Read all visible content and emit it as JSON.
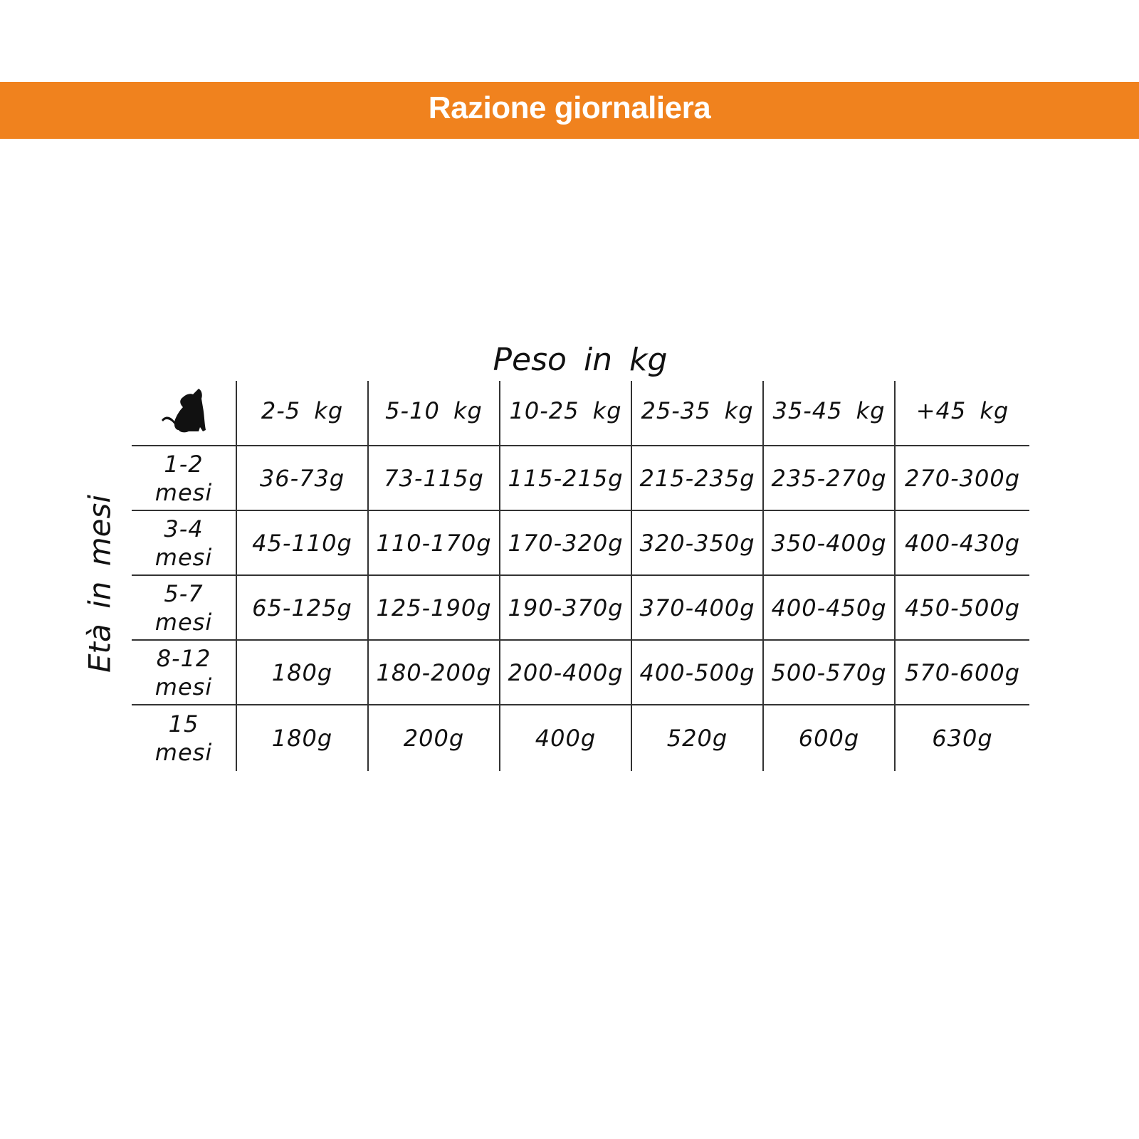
{
  "banner": {
    "title": "Razione giornaliera",
    "color": "#F0821E"
  },
  "table": {
    "column_axis_label": "Peso in kg",
    "row_axis_label": "Età in mesi",
    "corner_icon": "dog-silhouette-icon",
    "columns": [
      "2-5 kg",
      "5-10 kg",
      "10-25 kg",
      "25-35 kg",
      "35-45 kg",
      "+45 kg"
    ],
    "rows": [
      {
        "age": "1-2",
        "unit": "mesi",
        "values": [
          "36-73g",
          "73-115g",
          "115-215g",
          "215-235g",
          "235-270g",
          "270-300g"
        ]
      },
      {
        "age": "3-4",
        "unit": "mesi",
        "values": [
          "45-110g",
          "110-170g",
          "170-320g",
          "320-350g",
          "350-400g",
          "400-430g"
        ]
      },
      {
        "age": "5-7",
        "unit": "mesi",
        "values": [
          "65-125g",
          "125-190g",
          "190-370g",
          "370-400g",
          "400-450g",
          "450-500g"
        ]
      },
      {
        "age": "8-12",
        "unit": "mesi",
        "values": [
          "180g",
          "180-200g",
          "200-400g",
          "400-500g",
          "500-570g",
          "570-600g"
        ]
      },
      {
        "age": "15",
        "unit": "mesi",
        "values": [
          "180g",
          "200g",
          "400g",
          "520g",
          "600g",
          "630g"
        ]
      }
    ]
  }
}
